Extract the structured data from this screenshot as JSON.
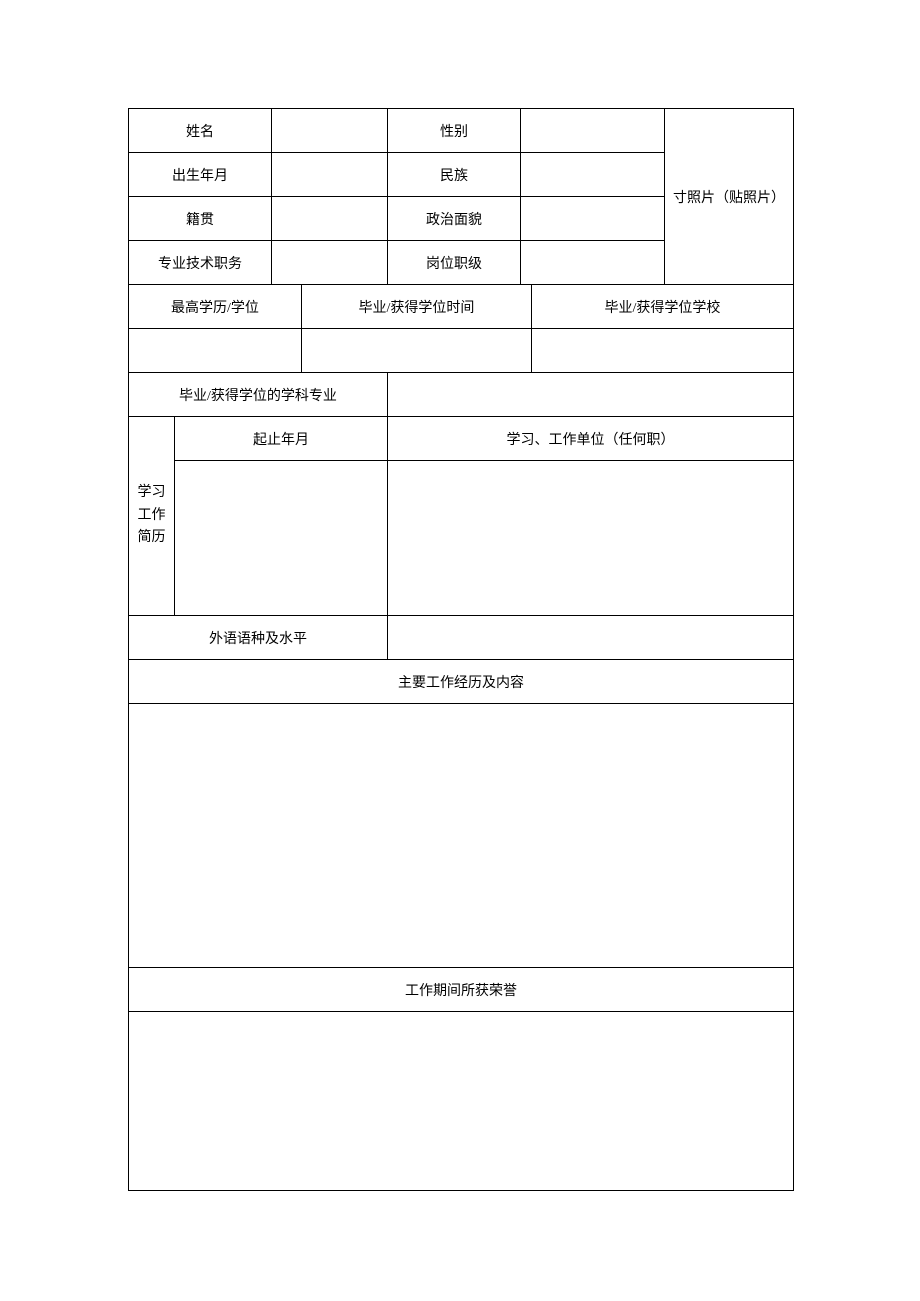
{
  "labels": {
    "name": "姓名",
    "gender": "性别",
    "birth": "出生年月",
    "ethnicity": "民族",
    "native_place": "籍贯",
    "political": "政治面貌",
    "professional_title": "专业技术职务",
    "post_level": "岗位职级",
    "photo": "寸照片（贴照片）",
    "highest_edu": "最高学历/学位",
    "grad_time": "毕业/获得学位时间",
    "grad_school": "毕业/获得学位学校",
    "grad_major": "毕业/获得学位的学科专业",
    "history_label": "学习\n工作\n简历",
    "history_period": "起止年月",
    "history_unit": "学习、工作单位（任何职）",
    "foreign_lang": "外语语种及水平",
    "work_experience": "主要工作经历及内容",
    "honors": "工作期间所获荣誉"
  },
  "values": {
    "name": "",
    "gender": "",
    "birth": "",
    "ethnicity": "",
    "native_place": "",
    "political": "",
    "professional_title": "",
    "post_level": "",
    "highest_edu": "",
    "grad_time": "",
    "grad_school": "",
    "grad_major": "",
    "history_period": "",
    "history_unit": "",
    "foreign_lang": "",
    "work_experience": "",
    "honors": ""
  },
  "style": {
    "border_color": "#000000",
    "background_color": "#ffffff",
    "font_size": 14,
    "text_color": "#000000"
  }
}
